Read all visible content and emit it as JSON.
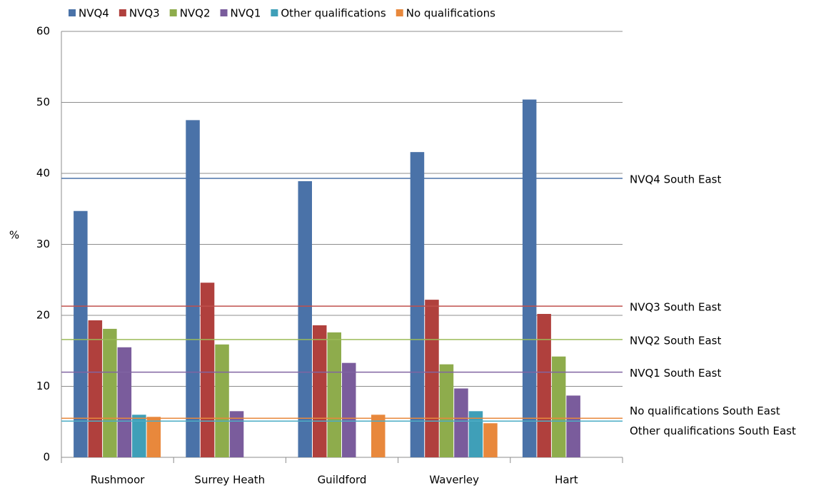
{
  "chart_data": {
    "type": "bar",
    "y_label": "%",
    "categories": [
      "Rushmoor",
      "Surrey Heath",
      "Guildford",
      "Waverley",
      "Hart"
    ],
    "series": [
      {
        "name": "NVQ4",
        "color": "#4a72a8",
        "values": [
          34.7,
          47.5,
          38.9,
          43.0,
          50.4
        ]
      },
      {
        "name": "NVQ3",
        "color": "#b0403d",
        "values": [
          19.3,
          24.6,
          18.6,
          22.2,
          20.2
        ]
      },
      {
        "name": "NVQ2",
        "color": "#8eac4c",
        "values": [
          18.1,
          15.9,
          17.6,
          13.1,
          14.2
        ]
      },
      {
        "name": "NVQ1",
        "color": "#7a5c9c",
        "values": [
          15.5,
          6.5,
          13.3,
          9.7,
          8.7
        ]
      },
      {
        "name": "Other qualifications",
        "color": "#3f9fb8",
        "values": [
          6.0,
          null,
          null,
          6.5,
          null
        ]
      },
      {
        "name": "No qualifications",
        "color": "#e8883c",
        "values": [
          5.7,
          null,
          6.0,
          4.8,
          null
        ]
      }
    ],
    "reference_lines": [
      {
        "label": "NVQ4 South East",
        "value": 39.3,
        "color": "#4a72a8"
      },
      {
        "label": "NVQ3 South East",
        "value": 21.3,
        "color": "#c0504d"
      },
      {
        "label": "NVQ2 South East",
        "value": 16.6,
        "color": "#9bbb59"
      },
      {
        "label": "NVQ1 South East",
        "value": 12.0,
        "color": "#8064a2"
      },
      {
        "label": "No qualifications South East",
        "value": 5.5,
        "color": "#e8883c"
      },
      {
        "label": "Other qualifications South East",
        "value": 5.1,
        "color": "#4bacc6"
      }
    ],
    "ylim": [
      0,
      60
    ],
    "yticks": [
      0,
      10,
      20,
      30,
      40,
      50,
      60
    ],
    "grid": true
  }
}
